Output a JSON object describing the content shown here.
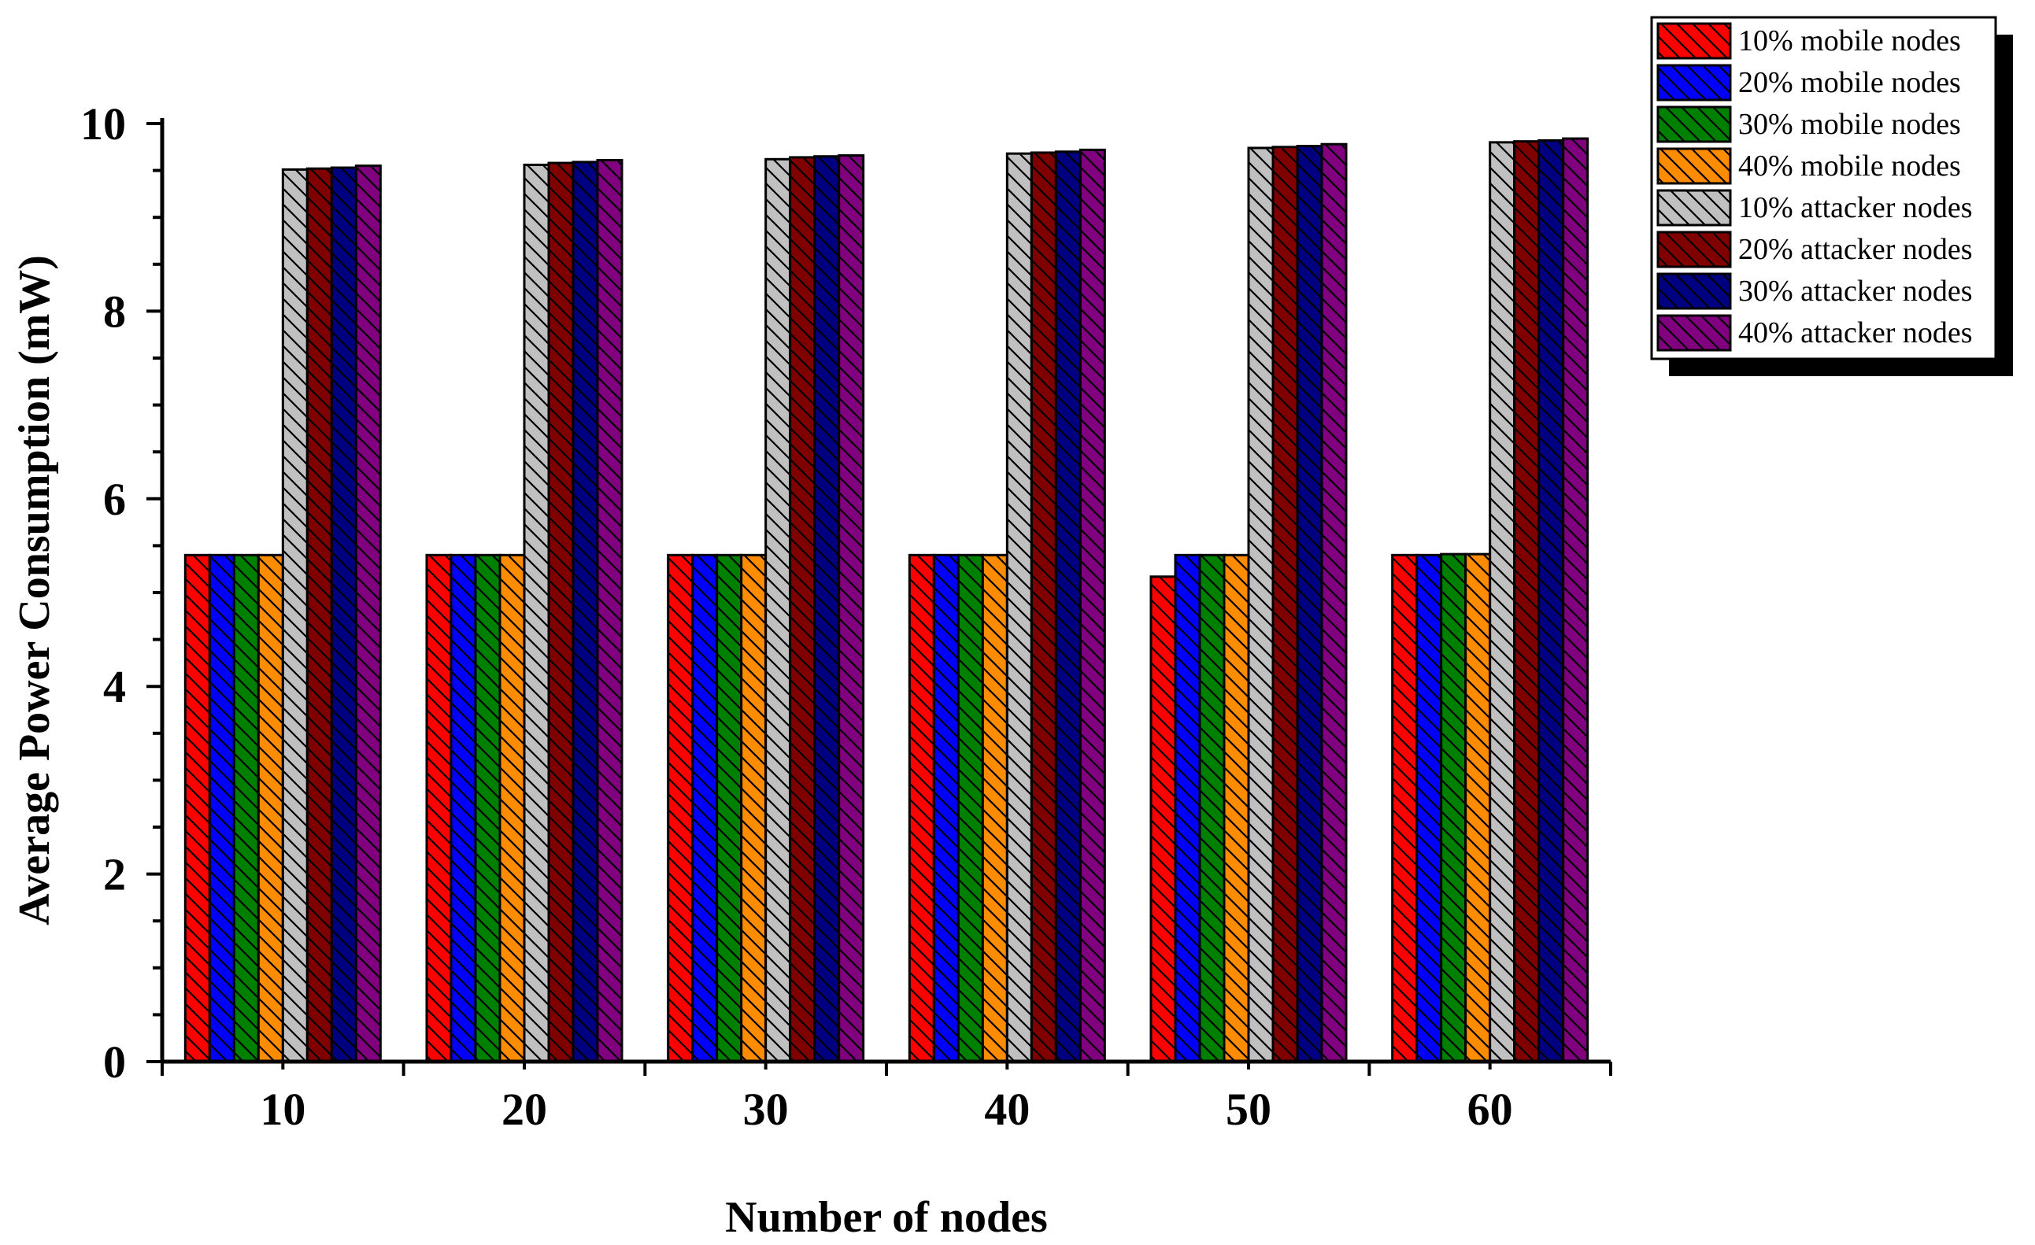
{
  "chart_data": {
    "type": "bar",
    "xlabel": "Number of nodes",
    "ylabel": "Average Power Consumption (mW)",
    "ylim": [
      0,
      10
    ],
    "yticks": [
      "0",
      "2",
      "4",
      "6",
      "8",
      "10"
    ],
    "categories": [
      "10",
      "20",
      "30",
      "40",
      "50",
      "60"
    ],
    "grid": false,
    "legend_position": "top-right",
    "pattern": "diagonal-hatch",
    "series": [
      {
        "name": "10% mobile nodes",
        "color": "#FF0000",
        "values": [
          5.4,
          5.4,
          5.4,
          5.4,
          5.17,
          5.4
        ]
      },
      {
        "name": "20% mobile nodes",
        "color": "#0000FF",
        "values": [
          5.4,
          5.4,
          5.4,
          5.4,
          5.4,
          5.4
        ]
      },
      {
        "name": "30% mobile nodes",
        "color": "#008000",
        "values": [
          5.4,
          5.4,
          5.4,
          5.4,
          5.4,
          5.41
        ]
      },
      {
        "name": "40% mobile nodes",
        "color": "#FF8C00",
        "values": [
          5.4,
          5.4,
          5.4,
          5.4,
          5.4,
          5.41
        ]
      },
      {
        "name": "10% attacker nodes",
        "color": "#C0C0C0",
        "values": [
          9.51,
          9.56,
          9.62,
          9.68,
          9.74,
          9.8
        ]
      },
      {
        "name": "20% attacker nodes",
        "color": "#800000",
        "values": [
          9.52,
          9.58,
          9.64,
          9.69,
          9.75,
          9.81
        ]
      },
      {
        "name": "30% attacker nodes",
        "color": "#000080",
        "values": [
          9.53,
          9.59,
          9.65,
          9.7,
          9.76,
          9.82
        ]
      },
      {
        "name": "40% attacker nodes",
        "color": "#800080",
        "values": [
          9.55,
          9.61,
          9.66,
          9.72,
          9.78,
          9.84
        ]
      }
    ]
  }
}
